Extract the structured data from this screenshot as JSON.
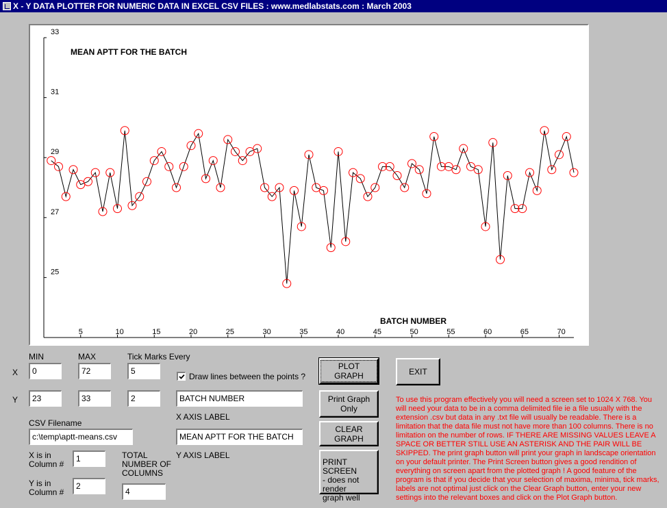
{
  "window": {
    "title": "X - Y DATA PLOTTER FOR NUMERIC DATA IN EXCEL CSV FILES : www.medlabstats.com : March 2003"
  },
  "controls": {
    "min_label": "MIN",
    "max_label": "MAX",
    "tick_label": "Tick Marks Every",
    "x_row_label": "X",
    "y_row_label": "Y",
    "x_min": "0",
    "x_max": "72",
    "x_tick": "5",
    "y_min": "23",
    "y_max": "33",
    "y_tick": "2",
    "draw_lines_label": "Draw lines between the points ?",
    "draw_lines_checked": true,
    "x_axis_label_value": "BATCH NUMBER",
    "x_axis_label_caption": "X AXIS LABEL",
    "y_axis_label_value": "MEAN APTT FOR THE BATCH",
    "y_axis_label_caption": "Y AXIS LABEL",
    "csv_caption": "CSV Filename",
    "csv_value": "c:\\temp\\aptt-means.csv",
    "x_col_caption_1": "X is in",
    "x_col_caption_2": "Column #",
    "x_col_value": "1",
    "y_col_caption_1": "Y is in",
    "y_col_caption_2": "Column #",
    "y_col_value": "2",
    "total_cols_caption_1": "TOTAL",
    "total_cols_caption_2": "NUMBER OF",
    "total_cols_caption_3": "COLUMNS",
    "total_cols_value": "4"
  },
  "buttons": {
    "plot": "PLOT GRAPH",
    "exit": "EXIT",
    "print_only": "Print Graph Only",
    "clear": "CLEAR GRAPH",
    "print_screen_1": "PRINT SCREEN",
    "print_screen_2": "- does not render",
    "print_screen_3": "graph well"
  },
  "info_text": "To use this program effectively you will need a screen set to 1024 X 768. You will need your data to be in a comma delimited file ie a file usually with the extension .csv but data in any .txt file will usually be readable. There is a limitation that the data file must not have more than 100 columns. There is no limitation on the number of rows. IF THERE ARE MISSING VALUES LEAVE A SPACE OR BETTER STILL USE AN ASTERISK AND THE PAIR WILL BE SKIPPED. The print graph button will print your graph in landscape orientation on your default printer. The Print Screen button gives a good rendition of everything on screen apart from the plotted graph ! A good feature of the program is that if you decide that your selection of maxima, minima, tick marks, labels are not optimal just click on the Clear Graph button, enter your new settings into the relevant boxes and click on the Plot Graph button.",
  "colors": {
    "titlebar": "#000080",
    "face": "#c0c0c0",
    "marker": "#ff0000",
    "info_text": "#ff0000"
  },
  "chart_data": {
    "type": "scatter",
    "title": "MEAN APTT FOR THE BATCH",
    "xlabel": "BATCH NUMBER",
    "ylabel": "",
    "xlim": [
      0,
      72
    ],
    "ylim": [
      23,
      33
    ],
    "x_ticks": [
      5,
      10,
      15,
      20,
      25,
      30,
      35,
      40,
      45,
      50,
      55,
      60,
      65,
      70
    ],
    "y_ticks": [
      25,
      27,
      29,
      31,
      33
    ],
    "lines_between_points": true,
    "x": [
      1,
      2,
      3,
      4,
      5,
      6,
      7,
      8,
      9,
      10,
      11,
      12,
      13,
      14,
      15,
      16,
      17,
      18,
      19,
      20,
      21,
      22,
      23,
      24,
      25,
      26,
      27,
      28,
      29,
      30,
      31,
      32,
      33,
      34,
      35,
      36,
      37,
      38,
      39,
      40,
      41,
      42,
      43,
      44,
      45,
      46,
      47,
      48,
      49,
      50,
      51,
      52,
      53,
      54,
      55,
      56,
      57,
      58,
      59,
      60,
      61,
      62,
      63,
      64,
      65,
      66,
      67,
      68,
      69,
      70,
      71,
      72
    ],
    "y": [
      28.9,
      28.7,
      27.7,
      28.6,
      28.1,
      28.2,
      28.5,
      27.2,
      28.5,
      27.3,
      29.9,
      27.4,
      27.7,
      28.2,
      28.9,
      29.2,
      28.7,
      28.0,
      28.7,
      29.4,
      29.8,
      28.3,
      28.9,
      28.0,
      29.6,
      29.2,
      28.9,
      29.2,
      29.3,
      28.0,
      27.7,
      28.0,
      24.8,
      27.9,
      26.7,
      29.1,
      28.0,
      27.9,
      26.0,
      29.2,
      26.2,
      28.5,
      28.3,
      27.7,
      28.0,
      28.7,
      28.7,
      28.4,
      28.0,
      28.8,
      28.6,
      27.8,
      29.7,
      28.7,
      28.7,
      28.6,
      29.3,
      28.7,
      28.6,
      26.7,
      29.5,
      25.6,
      28.4,
      27.3,
      27.3,
      28.5,
      27.9,
      29.9,
      28.6,
      29.1,
      29.7,
      28.5
    ]
  }
}
